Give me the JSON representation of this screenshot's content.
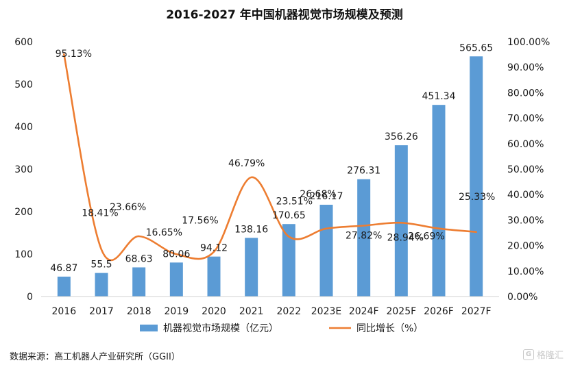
{
  "chart_data": {
    "type": "bar",
    "title": "2016-2027 年中国机器视觉市场规模及预测",
    "categories": [
      "2016",
      "2017",
      "2018",
      "2019",
      "2020",
      "2021",
      "2022",
      "2023E",
      "2024F",
      "2025F",
      "2026F",
      "2027F"
    ],
    "series": [
      {
        "name": "机器视觉市场规模（亿元）",
        "type": "bar",
        "axis": "left",
        "color": "#5b9bd5",
        "values": [
          46.87,
          55.5,
          68.63,
          80.06,
          94.12,
          138.16,
          170.65,
          216.17,
          276.31,
          356.26,
          451.34,
          565.65
        ],
        "labels": [
          "46.87",
          "55.5",
          "68.63",
          "80.06",
          "94.12",
          "138.16",
          "170.65",
          "216.17",
          "276.31",
          "356.26",
          "451.34",
          "565.65"
        ]
      },
      {
        "name": "同比增长（%）",
        "type": "line",
        "axis": "right",
        "color": "#ed7d31",
        "values": [
          95.13,
          18.41,
          23.66,
          16.65,
          17.56,
          46.79,
          23.51,
          26.68,
          27.82,
          28.94,
          26.69,
          25.33
        ],
        "labels": [
          "95.13%",
          "18.41%",
          "23.66%",
          "16.65%",
          "17.56%",
          "46.79%",
          "23.51%",
          "26.68%",
          "27.82%",
          "28.94%",
          "26.69%",
          "25.33%"
        ]
      }
    ],
    "ylim_left": [
      0,
      600
    ],
    "yticks_left": [
      "0",
      "100",
      "200",
      "300",
      "400",
      "500",
      "600"
    ],
    "ylim_right": [
      0,
      100
    ],
    "yticks_right": [
      "0.00%",
      "10.00%",
      "20.00%",
      "30.00%",
      "40.00%",
      "50.00%",
      "60.00%",
      "70.00%",
      "80.00%",
      "90.00%",
      "100.00%"
    ],
    "grid": false,
    "legend": "bottom"
  },
  "source": "数据来源：高工机器人产业研究所（GGII）",
  "watermark": {
    "logo_glyph": "G",
    "text": "格隆汇"
  }
}
